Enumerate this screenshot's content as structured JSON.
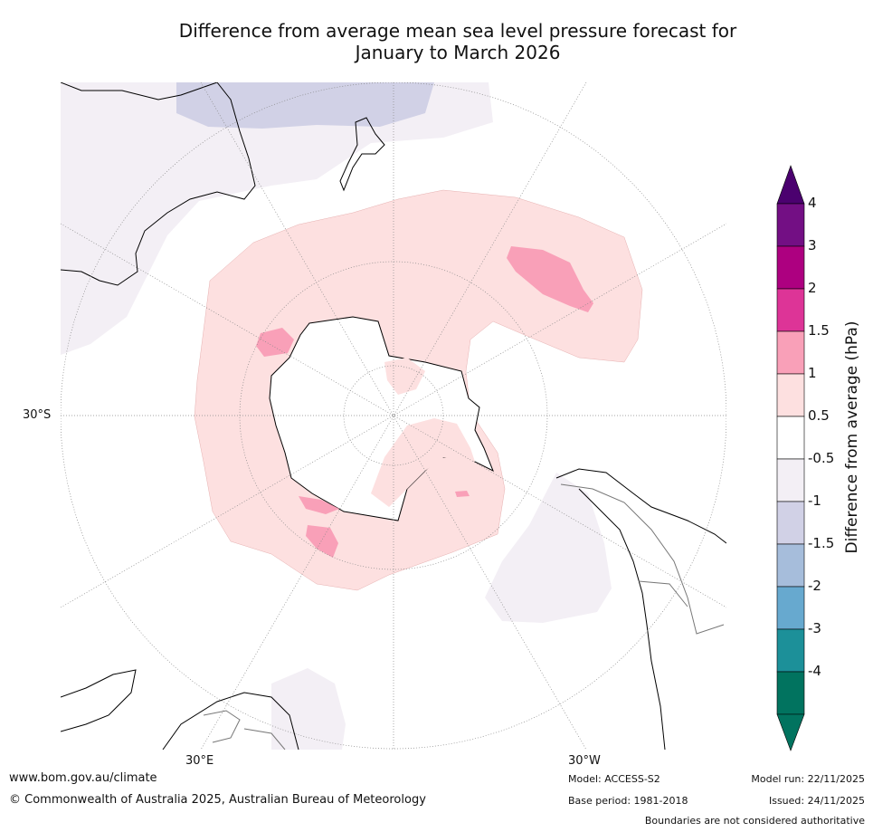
{
  "title": {
    "line1": "Difference from average mean sea level pressure forecast for",
    "line2": "January to March 2026"
  },
  "map": {
    "projection": "south-polar-stereographic",
    "latitude_label": "30°S",
    "longitude_labels": [
      "30°E",
      "30°W"
    ],
    "anomaly_colors": {
      "neg_0_5_to_1": "#f3eff5",
      "neg_1_to_1_5": "#d1d1e6",
      "pos_0_5_to_1": "#fde0e0",
      "pos_1_to_1_5": "#f9a0b8"
    }
  },
  "colorbar": {
    "title": "Difference from average (hPa)",
    "ticks": [
      "4",
      "3",
      "2",
      "1.5",
      "1",
      "0.5",
      "-0.5",
      "-1",
      "-1.5",
      "-2",
      "-3",
      "-4"
    ],
    "colors": [
      "#730f84",
      "#ad0080",
      "#dd3497",
      "#f9a0b8",
      "#fde0e0",
      "#ffffff",
      "#f3eff5",
      "#d1d1e6",
      "#a6bddb",
      "#67a9cf",
      "#1c9099",
      "#01735f"
    ],
    "top_arrow_color": "#4b016f",
    "bottom_arrow_color": "#01735f"
  },
  "footer": {
    "url": "www.bom.gov.au/climate",
    "copyright": "© Commonwealth of Australia 2025, Australian Bureau of Meteorology",
    "model": "Model: ACCESS-S2",
    "base_period": "Base period: 1981-2018",
    "model_run": "Model run: 22/11/2025",
    "issued": "Issued: 24/11/2025",
    "disclaimer": "Boundaries are not considered authoritative"
  }
}
